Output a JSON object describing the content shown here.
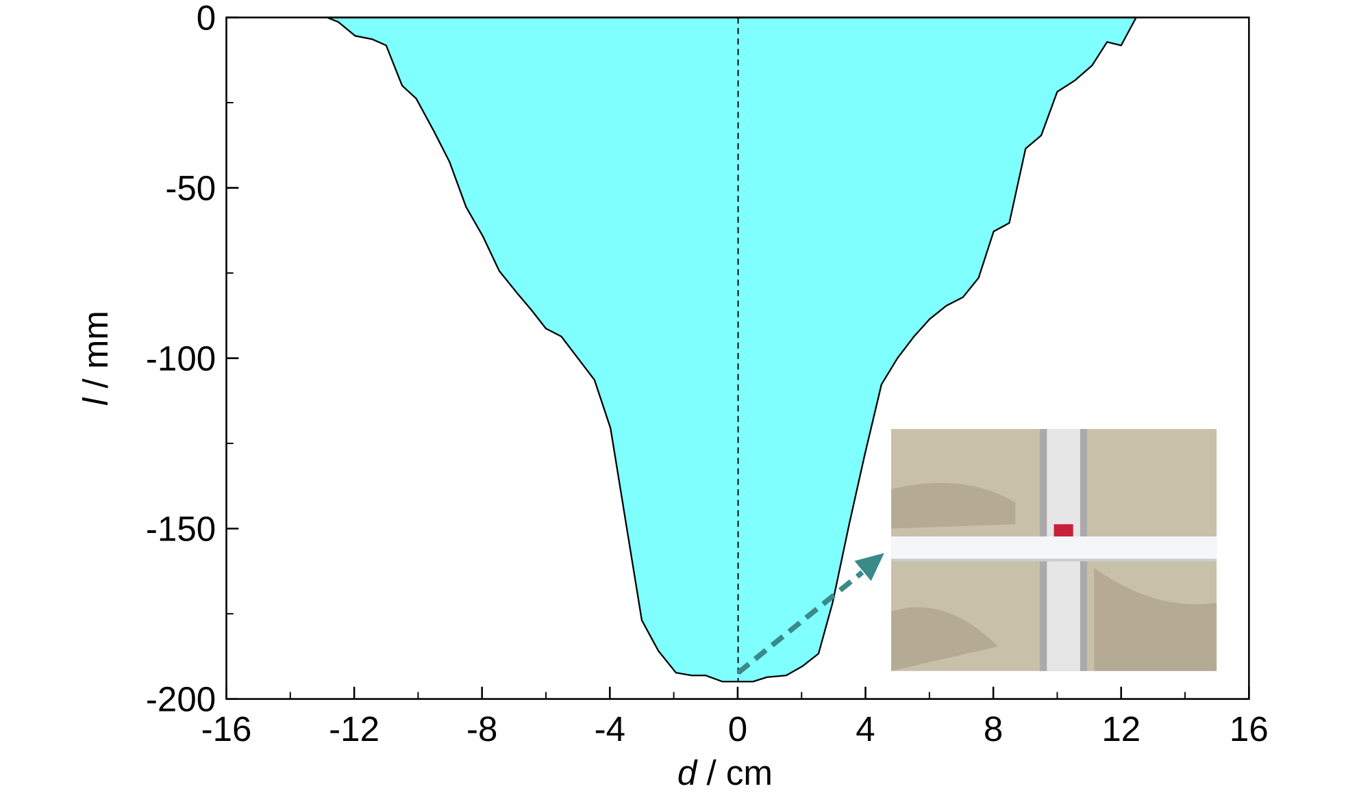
{
  "chart_data": {
    "type": "area",
    "xlabel": [
      "d",
      "/ cm"
    ],
    "ylabel": [
      "l",
      "/ mm"
    ],
    "x": [
      -12.85,
      -12.5,
      -11.97,
      -11.43,
      -11.0,
      -10.5,
      -10.06,
      -9.51,
      -9.02,
      -8.5,
      -7.98,
      -7.46,
      -6.91,
      -6.45,
      -6.0,
      -5.52,
      -5.0,
      -4.48,
      -3.98,
      -3.49,
      -3.0,
      -2.48,
      -1.93,
      -1.44,
      -1.0,
      -0.48,
      0.48,
      0.92,
      1.52,
      2.04,
      2.53,
      2.97,
      3.49,
      3.98,
      4.5,
      5.0,
      5.52,
      6.01,
      6.53,
      7.05,
      7.54,
      8.01,
      8.5,
      9.01,
      9.5,
      10.0,
      10.55,
      11.09,
      11.56,
      12.0,
      12.47
    ],
    "values": [
      0,
      -1.3,
      -5.4,
      -6.4,
      -8.2,
      -20,
      -23.8,
      -33.3,
      -42.3,
      -55.6,
      -64.1,
      -74.4,
      -80.8,
      -85.9,
      -91.3,
      -93.6,
      -100,
      -106.4,
      -120.5,
      -148.7,
      -176.9,
      -185.9,
      -192.3,
      -193.1,
      -193.1,
      -194.9,
      -194.9,
      -193.6,
      -193.1,
      -190.3,
      -186.7,
      -171.8,
      -148.7,
      -128.2,
      -107.7,
      -100,
      -93.6,
      -88.5,
      -84.6,
      -82.1,
      -76.4,
      -62.8,
      -60.3,
      -38.5,
      -34.6,
      -21.8,
      -18.5,
      -14.1,
      -7.2,
      -8.2,
      0
    ],
    "color": "#80ffff",
    "xlim": [
      -16,
      16
    ],
    "xticks": [
      -16,
      -12,
      -8,
      -4,
      0,
      4,
      8,
      12,
      16
    ],
    "x_minor_ticks": [
      -14,
      -10,
      -6,
      -2,
      2,
      6,
      10,
      14
    ],
    "ylim": [
      -200,
      0
    ],
    "yticks": [
      0,
      -50,
      -100,
      -150,
      -200
    ],
    "y_minor_ticks": [
      -25,
      -75,
      -125,
      -175
    ]
  }
}
